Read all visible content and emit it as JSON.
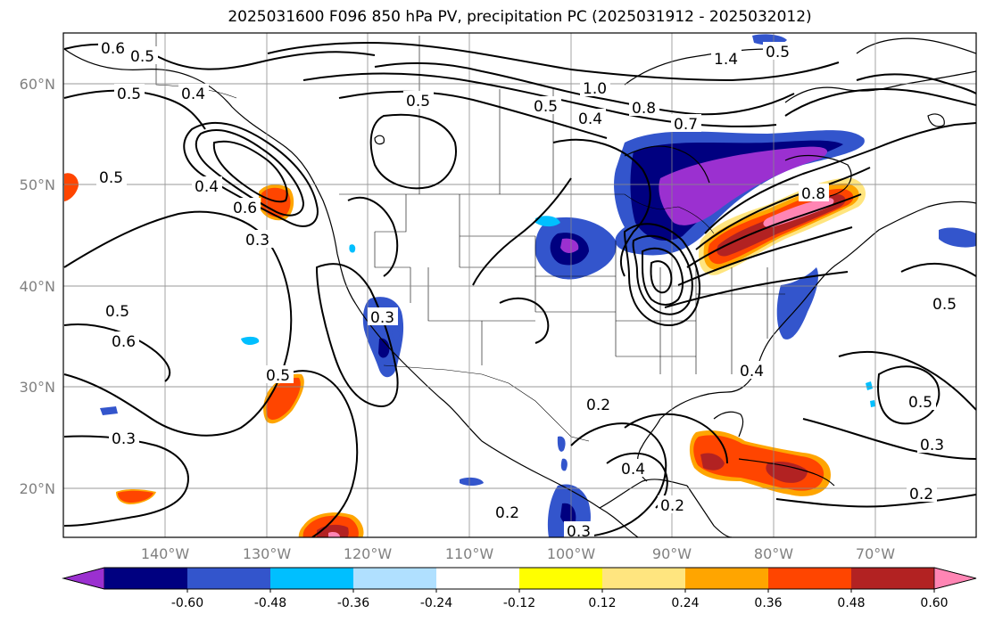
{
  "title": "2025031600 F096 850 hPa PV, precipitation PC (2025031912 - 2025032012)",
  "map": {
    "projection": "PlateCarree",
    "lon_range": [
      -150,
      -60
    ],
    "lat_range": [
      15,
      65
    ],
    "grid": true,
    "lat_ticks": [
      "60°N",
      "50°N",
      "40°N",
      "30°N",
      "20°N"
    ],
    "lon_ticks": [
      "140°W",
      "130°W",
      "120°W",
      "110°W",
      "100°W",
      "90°W",
      "80°W",
      "70°W"
    ]
  },
  "colorbar": {
    "orientation": "horizontal",
    "extend": "both",
    "colors": [
      "#9b30d0",
      "#000080",
      "#3355cc",
      "#00bfff",
      "#b0e0ff",
      "#ffffff",
      "#ffff00",
      "#ffe57f",
      "#ffa500",
      "#ff4500",
      "#b22222",
      "#ff85b4"
    ],
    "tick_labels": [
      "-0.60",
      "-0.48",
      "-0.36",
      "-0.24",
      "-0.12",
      "0.12",
      "0.24",
      "0.36",
      "0.48",
      "0.60"
    ]
  },
  "contour_labels": [
    "0.6",
    "0.5",
    "0.5",
    "0.4",
    "0.5",
    "0.5",
    "0.4",
    "0.6",
    "0.3",
    "0.5",
    "0.6",
    "0.5",
    "0.3",
    "0.3",
    "0.5",
    "1.0",
    "0.8",
    "0.7",
    "0.4",
    "1.4",
    "0.8",
    "0.5",
    "0.2",
    "0.4",
    "0.2",
    "0.2",
    "0.5",
    "0.3",
    "0.2",
    "0.3",
    "0.5",
    "0.4"
  ],
  "precip_areas": [
    {
      "sign": "negative",
      "region": "Great Lakes / Quebec",
      "peak": "< -0.60"
    },
    {
      "sign": "negative",
      "region": "Nebraska / Kansas",
      "peak": "< -0.60"
    },
    {
      "sign": "negative",
      "region": "Southern California / Baja",
      "peak": "-0.48"
    },
    {
      "sign": "negative",
      "region": "Mid-Atlantic coast",
      "peak": "-0.36"
    },
    {
      "sign": "negative",
      "region": "Southern Mexico",
      "peak": "-0.48"
    },
    {
      "sign": "positive",
      "region": "Ohio Valley / Northeast",
      "peak": "> 0.60"
    },
    {
      "sign": "positive",
      "region": "Caribbean / Cuba",
      "peak": "0.48"
    },
    {
      "sign": "positive",
      "region": "Pacific near 130°W 48°N",
      "peak": "0.36"
    },
    {
      "sign": "positive",
      "region": "Eastern Pacific 128°W 30°N",
      "peak": "0.36"
    },
    {
      "sign": "positive",
      "region": "Eastern Pacific 122°W 16°N",
      "peak": "> 0.60"
    }
  ]
}
